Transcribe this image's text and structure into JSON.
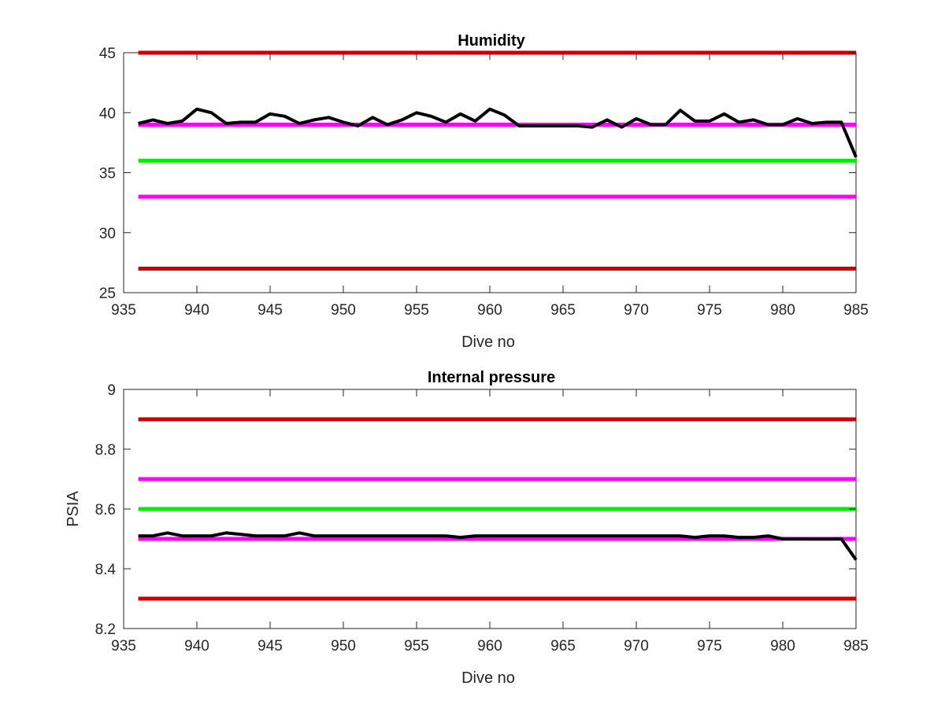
{
  "chart_data": [
    {
      "type": "line",
      "title": "Humidity",
      "xlabel": "Dive no",
      "ylabel": "",
      "xlim": [
        935,
        985
      ],
      "ylim": [
        25,
        45
      ],
      "xticks": [
        935,
        940,
        945,
        950,
        955,
        960,
        965,
        970,
        975,
        980,
        985
      ],
      "yticks": [
        25,
        30,
        35,
        40,
        45
      ],
      "grid": false,
      "series": [
        {
          "color": "#000000",
          "x": [
            936,
            937,
            938,
            939,
            940,
            941,
            942,
            943,
            944,
            945,
            946,
            947,
            948,
            949,
            950,
            951,
            952,
            953,
            954,
            955,
            956,
            957,
            958,
            959,
            960,
            961,
            962,
            963,
            964,
            965,
            966,
            967,
            968,
            969,
            970,
            971,
            972,
            973,
            974,
            975,
            976,
            977,
            978,
            979,
            980,
            981,
            982,
            983,
            984,
            985
          ],
          "y": [
            39.1,
            39.4,
            39.1,
            39.3,
            40.3,
            40.0,
            39.1,
            39.2,
            39.2,
            39.9,
            39.7,
            39.1,
            39.4,
            39.6,
            39.2,
            38.9,
            39.6,
            39.0,
            39.4,
            40.0,
            39.7,
            39.2,
            39.9,
            39.3,
            40.3,
            39.8,
            38.9,
            38.9,
            38.9,
            38.9,
            38.9,
            38.8,
            39.4,
            38.8,
            39.5,
            39.0,
            39.0,
            40.2,
            39.3,
            39.3,
            39.9,
            39.2,
            39.4,
            39.0,
            39.0,
            39.5,
            39.1,
            39.2,
            39.2,
            36.3
          ]
        }
      ],
      "reference_lines": [
        {
          "y": 45,
          "color": "#cc0000"
        },
        {
          "y": 39,
          "color": "#ff00ff"
        },
        {
          "y": 36,
          "color": "#00ee00"
        },
        {
          "y": 33,
          "color": "#ff00ff"
        },
        {
          "y": 27,
          "color": "#cc0000"
        }
      ]
    },
    {
      "type": "line",
      "title": "Internal pressure",
      "xlabel": "Dive no",
      "ylabel": "PSIA",
      "xlim": [
        935,
        985
      ],
      "ylim": [
        8.2,
        9.0
      ],
      "xticks": [
        935,
        940,
        945,
        950,
        955,
        960,
        965,
        970,
        975,
        980,
        985
      ],
      "yticks": [
        8.2,
        8.4,
        8.6,
        8.8,
        9
      ],
      "ytick_labels": [
        "8.2",
        "8.4",
        "8.6",
        "8.8",
        "9"
      ],
      "grid": false,
      "series": [
        {
          "color": "#000000",
          "x": [
            936,
            937,
            938,
            939,
            940,
            941,
            942,
            943,
            944,
            945,
            946,
            947,
            948,
            949,
            950,
            951,
            952,
            953,
            954,
            955,
            956,
            957,
            958,
            959,
            960,
            961,
            962,
            963,
            964,
            965,
            966,
            967,
            968,
            969,
            970,
            971,
            972,
            973,
            974,
            975,
            976,
            977,
            978,
            979,
            980,
            981,
            982,
            983,
            984,
            985
          ],
          "y": [
            8.51,
            8.51,
            8.52,
            8.51,
            8.51,
            8.51,
            8.52,
            8.515,
            8.51,
            8.51,
            8.51,
            8.52,
            8.51,
            8.51,
            8.51,
            8.51,
            8.51,
            8.51,
            8.51,
            8.51,
            8.51,
            8.51,
            8.505,
            8.51,
            8.51,
            8.51,
            8.51,
            8.51,
            8.51,
            8.51,
            8.51,
            8.51,
            8.51,
            8.51,
            8.51,
            8.51,
            8.51,
            8.51,
            8.505,
            8.51,
            8.51,
            8.505,
            8.505,
            8.51,
            8.5,
            8.5,
            8.5,
            8.5,
            8.5,
            8.43
          ]
        }
      ],
      "reference_lines": [
        {
          "y": 8.9,
          "color": "#cc0000"
        },
        {
          "y": 8.7,
          "color": "#ff00ff"
        },
        {
          "y": 8.6,
          "color": "#00ee00"
        },
        {
          "y": 8.5,
          "color": "#ff00ff"
        },
        {
          "y": 8.3,
          "color": "#cc0000"
        }
      ]
    }
  ]
}
